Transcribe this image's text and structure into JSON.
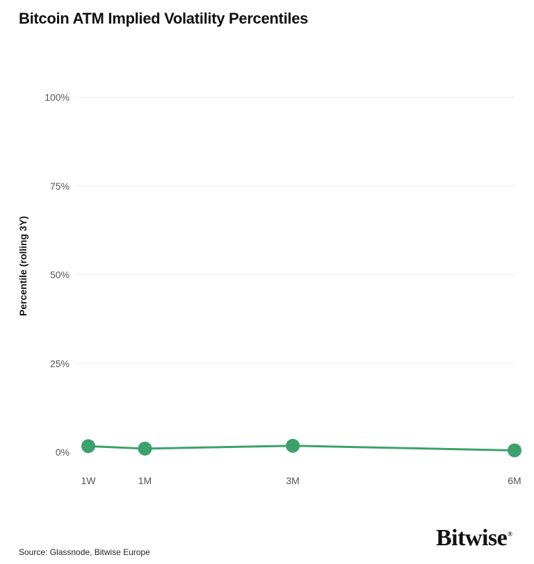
{
  "colors": {
    "series": "#3ca16a",
    "grid": "#eeeeee",
    "text": "#111111",
    "tick": "#555555"
  },
  "chart_data": {
    "type": "line",
    "title": "Bitcoin ATM Implied Volatility Percentiles",
    "ylabel": "Percentile (rolling 3Y)",
    "xlabel": "",
    "x_positions_days": [
      7,
      30,
      90,
      180
    ],
    "categories": [
      "1W",
      "1M",
      "3M",
      "6M"
    ],
    "y_ticks": [
      "0%",
      "25%",
      "50%",
      "75%",
      "100%"
    ],
    "y_tick_values": [
      0,
      25,
      50,
      75,
      100
    ],
    "ylim": [
      0,
      100
    ],
    "grid": true,
    "series": [
      {
        "values": [
          1.7,
          1.0,
          1.8,
          0.5
        ]
      }
    ]
  },
  "footer": {
    "source": "Source: Glassnode, Bitwise Europe",
    "logo_text": "Bitwise",
    "logo_mark": "®"
  }
}
